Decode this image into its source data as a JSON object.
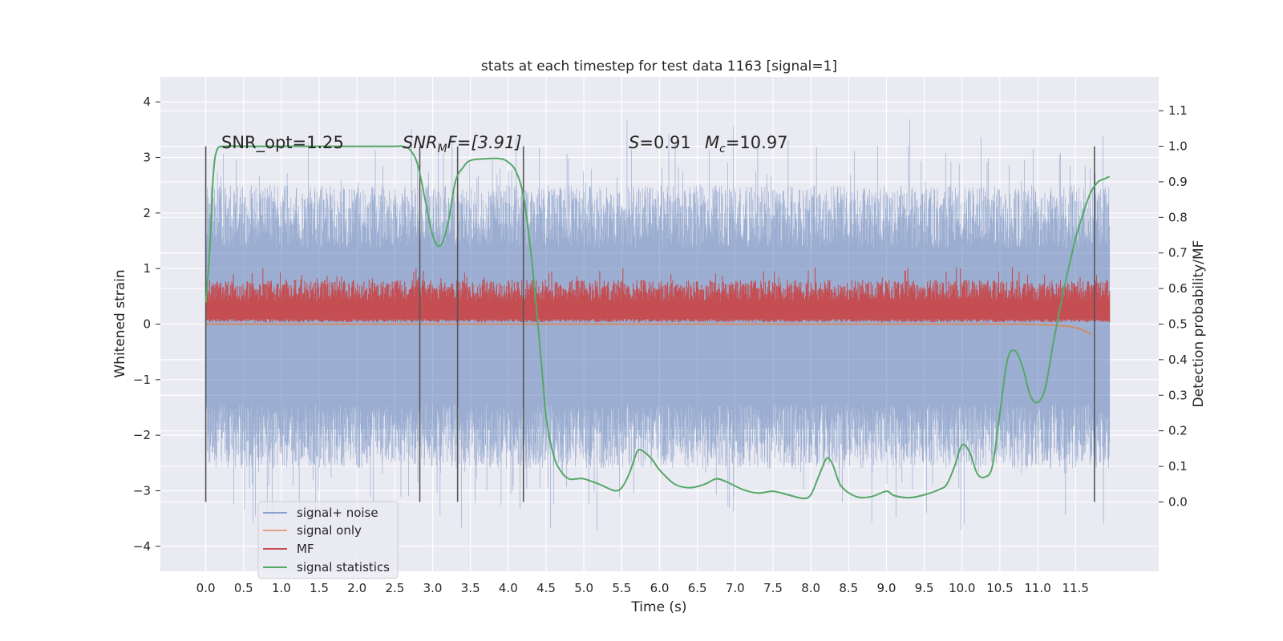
{
  "chart_data": {
    "type": "line",
    "title": "stats at each timestep for test data 1163 [signal=1]",
    "xlabel": "Time (s)",
    "ylabel": "Whitened strain",
    "ylabel_right": "Detection probability/MF",
    "xlim": [
      -0.6,
      12.6
    ],
    "ylim": [
      -4.45,
      4.45
    ],
    "ylim_right": [
      -0.195,
      1.195
    ],
    "x_ticks": [
      "0.0",
      "0.5",
      "1.0",
      "1.5",
      "2.0",
      "2.5",
      "3.0",
      "3.5",
      "4.0",
      "4.5",
      "5.0",
      "5.5",
      "6.0",
      "6.5",
      "7.0",
      "7.5",
      "8.0",
      "8.5",
      "9.0",
      "9.5",
      "10.0",
      "10.5",
      "11.0",
      "11.5"
    ],
    "y_ticks": [
      "4",
      "3",
      "2",
      "1",
      "0",
      "−1",
      "−2",
      "−3",
      "−4"
    ],
    "y_ticks_right": [
      "1.1",
      "1.0",
      "0.9",
      "0.8",
      "0.7",
      "0.6",
      "0.5",
      "0.4",
      "0.3",
      "0.2",
      "0.1",
      "0.0"
    ],
    "grid": true,
    "legend_position": "lower-left",
    "annotations": {
      "snr_opt": "SNR_opt=1.25",
      "snr_mf_main": "SNR",
      "snr_mf_sub": "M",
      "snr_mf_rest": "F=[3.91]",
      "s_main": "S",
      "s_rest": "=0.91",
      "mc_main": "M",
      "mc_sub": "c",
      "mc_rest": "=10.97"
    },
    "vertical_markers": [
      0.0,
      2.83,
      3.33,
      4.2,
      11.75
    ],
    "series": [
      {
        "name": "signal+ noise",
        "color": "#4c72b0",
        "description_range": [
          -4.05,
          4.1
        ],
        "envelope": {
          "x": [
            0.0,
            11.95
          ],
          "upper_typical": 2.5,
          "lower_typical": -2.6
        }
      },
      {
        "name": "signal only",
        "color": "#dd8452",
        "x": [
          0.0,
          10.8,
          11.0,
          11.2,
          11.4,
          11.55,
          11.7
        ],
        "y": [
          0.0,
          0.0,
          -0.01,
          -0.02,
          -0.04,
          -0.08,
          -0.18
        ]
      },
      {
        "name": "MF",
        "color": "#c44e52",
        "band_right_axis": [
          0.505,
          0.6
        ],
        "peak_right_axis": 0.66
      },
      {
        "name": "signal statistics",
        "color": "#55a868",
        "axis": "right",
        "x": [
          0.0,
          0.05,
          0.1,
          0.15,
          0.25,
          0.5,
          1.0,
          2.0,
          2.5,
          2.6,
          2.7,
          2.8,
          2.9,
          3.0,
          3.1,
          3.2,
          3.3,
          3.4,
          3.5,
          3.7,
          3.9,
          4.0,
          4.1,
          4.2,
          4.3,
          4.4,
          4.45,
          4.5,
          4.6,
          4.7,
          4.8,
          4.9,
          5.0,
          5.2,
          5.4,
          5.5,
          5.6,
          5.7,
          5.75,
          5.8,
          5.9,
          6.0,
          6.2,
          6.4,
          6.6,
          6.75,
          6.9,
          7.1,
          7.3,
          7.5,
          7.7,
          7.9,
          8.0,
          8.1,
          8.2,
          8.25,
          8.3,
          8.4,
          8.6,
          8.8,
          9.0,
          9.1,
          9.3,
          9.5,
          9.7,
          9.8,
          9.9,
          10.0,
          10.1,
          10.2,
          10.3,
          10.4,
          10.5,
          10.6,
          10.7,
          10.8,
          10.9,
          11.0,
          11.1,
          11.2,
          11.3,
          11.4,
          11.5,
          11.6,
          11.7,
          11.8,
          11.9,
          11.95
        ],
        "y": [
          0.56,
          0.7,
          0.92,
          0.99,
          1.0,
          1.0,
          1.0,
          1.0,
          1.0,
          1.0,
          0.99,
          0.95,
          0.85,
          0.75,
          0.72,
          0.78,
          0.9,
          0.94,
          0.96,
          0.965,
          0.965,
          0.955,
          0.93,
          0.86,
          0.7,
          0.48,
          0.36,
          0.24,
          0.13,
          0.085,
          0.065,
          0.065,
          0.065,
          0.05,
          0.032,
          0.04,
          0.08,
          0.14,
          0.146,
          0.14,
          0.12,
          0.09,
          0.05,
          0.04,
          0.05,
          0.065,
          0.055,
          0.035,
          0.025,
          0.03,
          0.02,
          0.01,
          0.02,
          0.07,
          0.12,
          0.12,
          0.1,
          0.045,
          0.015,
          0.015,
          0.03,
          0.018,
          0.012,
          0.02,
          0.035,
          0.05,
          0.1,
          0.16,
          0.14,
          0.08,
          0.07,
          0.1,
          0.25,
          0.4,
          0.425,
          0.38,
          0.3,
          0.28,
          0.32,
          0.44,
          0.55,
          0.65,
          0.74,
          0.81,
          0.87,
          0.9,
          0.91,
          0.915
        ]
      }
    ]
  }
}
